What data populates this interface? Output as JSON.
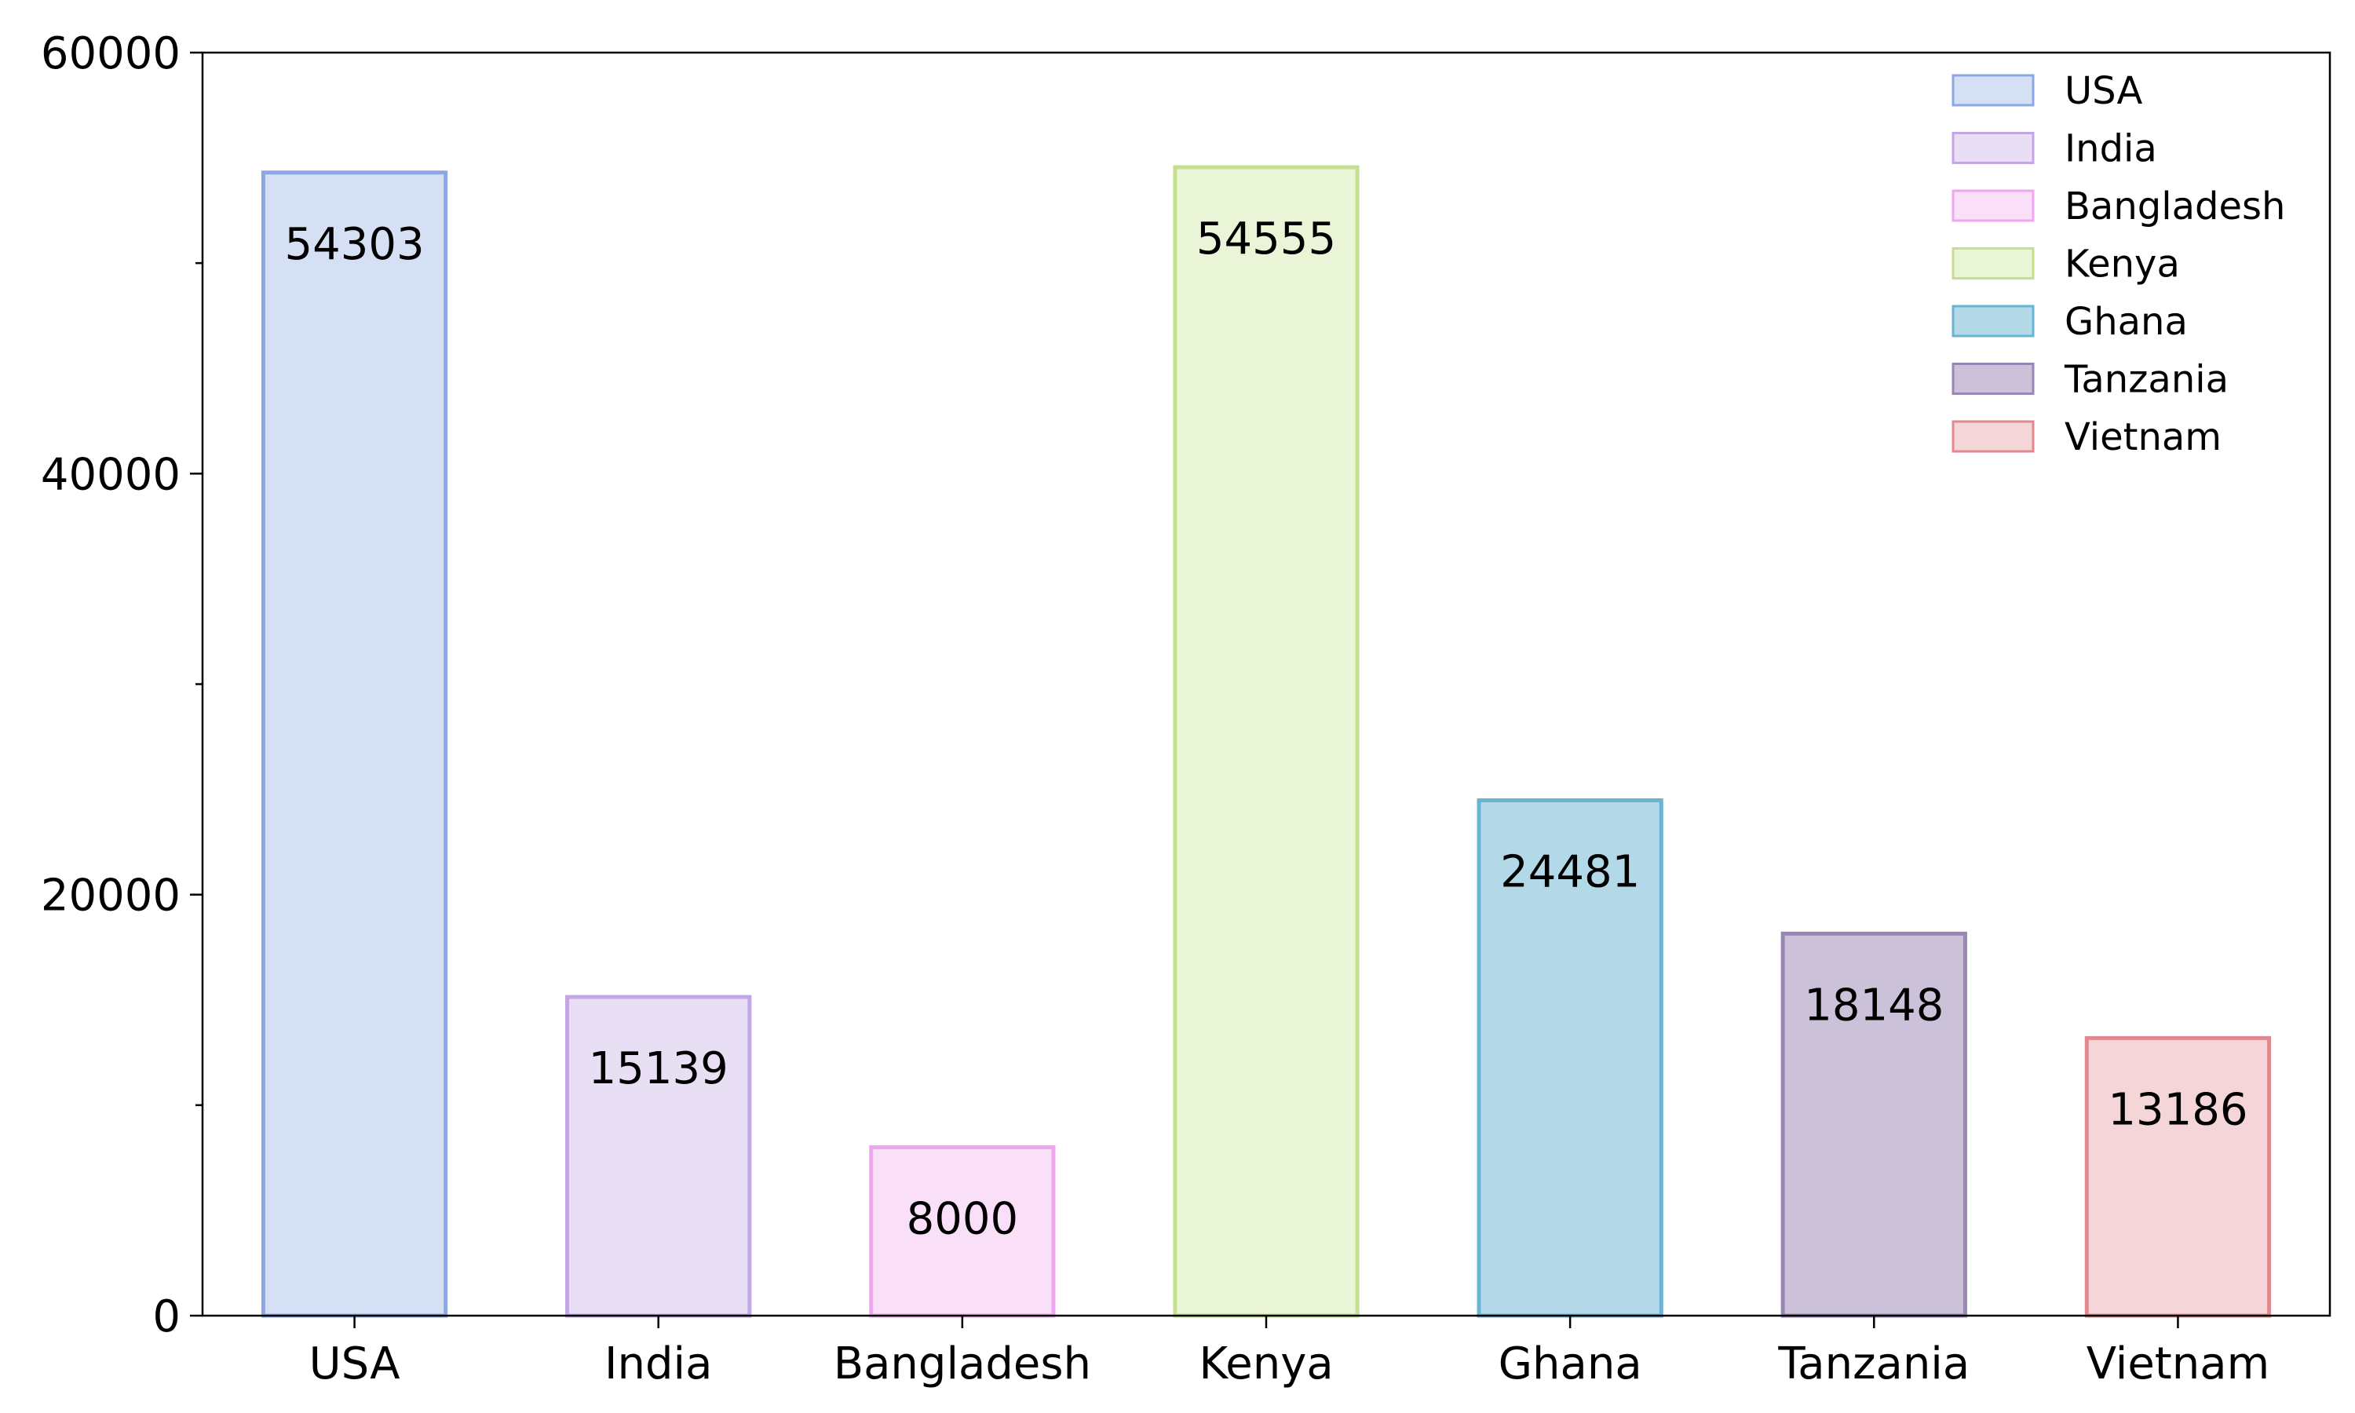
{
  "chart_data": {
    "type": "bar",
    "categories": [
      "USA",
      "India",
      "Bangladesh",
      "Kenya",
      "Ghana",
      "Tanzania",
      "Vietnam"
    ],
    "values": [
      54303,
      15139,
      8000,
      54555,
      24481,
      18148,
      13186
    ],
    "ylim": [
      0,
      60000
    ],
    "y_ticks": [
      0,
      20000,
      40000,
      60000
    ],
    "y_minor_ticks": [
      10000,
      30000,
      50000
    ],
    "title": "",
    "xlabel": "",
    "ylabel": "",
    "grid": false,
    "legend": {
      "placement": "top-right",
      "entries": [
        "USA",
        "India",
        "Bangladesh",
        "Kenya",
        "Ghana",
        "Tanzania",
        "Vietnam"
      ]
    },
    "colors": {
      "fill": [
        "#d6e0f5",
        "#e8dff5",
        "#f9e0f8",
        "#e9f5d6",
        "#b3d9e8",
        "#cbc1d8",
        "#f4d6d8"
      ],
      "edge": [
        "#8aa8e5",
        "#c3a6e3",
        "#f0a6ef",
        "#c4e08e",
        "#6ab3d3",
        "#9a86b5",
        "#e08a8f"
      ]
    }
  }
}
